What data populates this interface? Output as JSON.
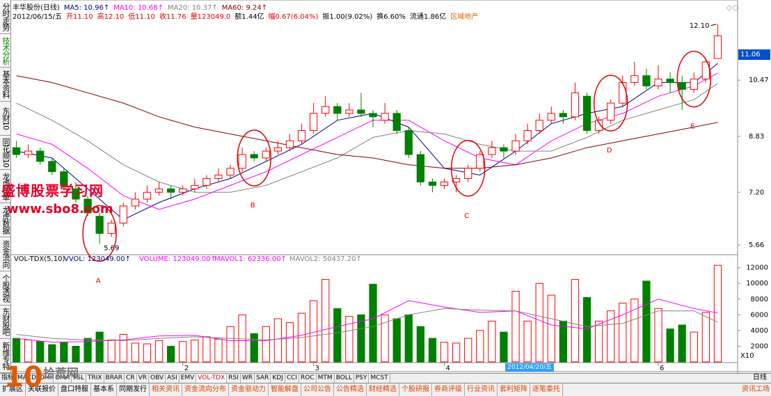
{
  "header": {
    "stock": "丰华股份(日线)",
    "date": "2012/06/15/五",
    "quote": [
      "开11.10",
      "高12.10",
      "低11.10",
      "收11.76",
      "量123049.0"
    ],
    "stats": [
      "额1.44亿",
      "幅0.67(6.04%)",
      "振1.00(9.02%)",
      "换6.60%",
      "流通1.86亿"
    ],
    "sector": "区域地产"
  },
  "sidebar": [
    "分时走势",
    "技术分析",
    "基本资料",
    "东财10",
    "同花顺10",
    "龙虎榜单",
    "龙虎数据",
    "资金流向",
    "个股透视",
    "东财股吧",
    "新维专特"
  ],
  "active_sidebar": "技术分析",
  "indicator_tabs": [
    "指标",
    "MACD",
    "DMI",
    "DMA",
    "FSL",
    "TRIX",
    "BRAR",
    "CR",
    "VR",
    "OBV",
    "ASI",
    "EMV",
    "VOL-TDX",
    "RSI",
    "WR",
    "SAR",
    "KDJ",
    "CCI",
    "ROC",
    "MTM",
    "BOLL",
    "PSY",
    "MCST"
  ],
  "active_indicator": "VOL-TDX",
  "period": "日线",
  "info_tabs": [
    "扩展区",
    "关联报价",
    "盘口特服",
    "基本系",
    "同期发行",
    "相关资讯",
    "资金流向分布",
    "资金驱动力",
    "智能解盘",
    "公司公告",
    "公告精选",
    "财经精选",
    "个股研报",
    "券商评级",
    "行业资讯",
    "套利矩阵",
    "逐笔委托"
  ],
  "info_corner": "资讯工场",
  "watermark": {
    "site_name": "盛博股票学习网",
    "site_url": "www.sbo8.com",
    "logo_number": "10",
    "logo_text": "拾荒网"
  },
  "annotations": [
    "A",
    "B",
    "C",
    "D",
    "E"
  ],
  "chart_data": [
    {
      "type": "candlestick",
      "colors": {
        "up": "#ff0000",
        "down": "#008000"
      },
      "xlim": [
        -0.5,
        59.5
      ],
      "ylim": [
        5.46,
        12.4
      ],
      "yticks": [
        10.47,
        8.83,
        {
          "value": 7.2,
          "label": "7.20"
        },
        5.66
      ],
      "high_label": "12.10",
      "low_label": "5.69",
      "cursor_price": "11.06",
      "ohlc": [
        [
          8.5,
          8.7,
          8.2,
          8.3
        ],
        [
          8.3,
          8.6,
          8.2,
          8.4
        ],
        [
          8.4,
          8.5,
          8.0,
          8.1
        ],
        [
          8.1,
          8.2,
          7.7,
          7.8
        ],
        [
          7.8,
          7.9,
          7.3,
          7.4
        ],
        [
          7.3,
          7.5,
          6.9,
          7.0
        ],
        [
          7.0,
          7.1,
          6.5,
          6.6
        ],
        [
          6.5,
          6.6,
          5.69,
          6.0
        ],
        [
          6.0,
          6.4,
          5.9,
          6.3
        ],
        [
          6.3,
          6.9,
          6.2,
          6.8
        ],
        [
          6.8,
          7.2,
          6.7,
          7.0
        ],
        [
          7.0,
          7.4,
          6.9,
          7.2
        ],
        [
          7.2,
          7.5,
          7.1,
          7.3
        ],
        [
          7.3,
          7.4,
          7.0,
          7.2
        ],
        [
          7.2,
          7.4,
          7.1,
          7.3
        ],
        [
          7.3,
          7.6,
          7.2,
          7.4
        ],
        [
          7.4,
          7.7,
          7.3,
          7.6
        ],
        [
          7.6,
          7.9,
          7.5,
          7.7
        ],
        [
          7.7,
          8.0,
          7.6,
          7.9
        ],
        [
          7.9,
          8.5,
          7.8,
          8.3
        ],
        [
          8.3,
          8.4,
          8.1,
          8.2
        ],
        [
          8.2,
          8.5,
          8.1,
          8.4
        ],
        [
          8.4,
          8.7,
          8.3,
          8.5
        ],
        [
          8.5,
          8.9,
          8.4,
          8.7
        ],
        [
          8.7,
          9.2,
          8.6,
          9.0
        ],
        [
          9.0,
          9.8,
          8.9,
          9.5
        ],
        [
          9.5,
          10.0,
          9.4,
          9.7
        ],
        [
          9.7,
          9.8,
          9.3,
          9.5
        ],
        [
          9.5,
          9.8,
          9.4,
          9.6
        ],
        [
          9.6,
          10.1,
          9.4,
          9.5
        ],
        [
          9.5,
          9.6,
          9.1,
          9.4
        ],
        [
          9.3,
          9.8,
          9.2,
          9.5
        ],
        [
          9.5,
          9.6,
          8.9,
          9.0
        ],
        [
          9.0,
          9.1,
          8.2,
          8.3
        ],
        [
          8.3,
          8.4,
          7.4,
          7.5
        ],
        [
          7.5,
          7.6,
          7.2,
          7.4
        ],
        [
          7.4,
          7.6,
          7.3,
          7.5
        ],
        [
          7.5,
          7.7,
          7.2,
          7.6
        ],
        [
          7.6,
          8.0,
          7.5,
          7.9
        ],
        [
          7.9,
          8.4,
          7.8,
          8.3
        ],
        [
          8.3,
          8.7,
          8.2,
          8.5
        ],
        [
          8.5,
          8.6,
          8.2,
          8.4
        ],
        [
          8.4,
          8.9,
          8.3,
          8.7
        ],
        [
          8.7,
          9.2,
          8.6,
          9.0
        ],
        [
          9.0,
          9.5,
          8.9,
          9.3
        ],
        [
          9.3,
          9.7,
          9.2,
          9.5
        ],
        [
          9.5,
          9.6,
          9.2,
          9.4
        ],
        [
          9.4,
          10.4,
          9.3,
          10.1
        ],
        [
          10.0,
          10.1,
          8.9,
          9.0
        ],
        [
          9.0,
          9.4,
          8.9,
          9.3
        ],
        [
          9.3,
          9.9,
          9.2,
          9.8
        ],
        [
          9.8,
          10.6,
          9.7,
          10.4
        ],
        [
          10.4,
          11.0,
          10.3,
          10.6
        ],
        [
          10.6,
          10.8,
          10.2,
          10.3
        ],
        [
          10.3,
          10.9,
          10.2,
          10.5
        ],
        [
          10.5,
          10.7,
          10.1,
          10.4
        ],
        [
          10.4,
          10.6,
          9.6,
          10.2
        ],
        [
          10.2,
          10.7,
          10.1,
          10.5
        ],
        [
          10.5,
          11.1,
          10.4,
          11.0
        ],
        [
          11.1,
          12.1,
          11.1,
          11.76
        ]
      ],
      "series": [
        {
          "name": "MA5: 10.96↑",
          "color": "#000080",
          "x": [
            0,
            3,
            6,
            9,
            12,
            15,
            18,
            21,
            24,
            27,
            30,
            33,
            36,
            39,
            42,
            45,
            48,
            51,
            54,
            57,
            59
          ],
          "values": [
            8.4,
            8.2,
            7.3,
            6.4,
            6.9,
            7.3,
            7.6,
            8.1,
            8.6,
            9.3,
            9.5,
            9.1,
            7.9,
            7.7,
            8.4,
            9.2,
            9.5,
            9.7,
            10.4,
            10.4,
            10.96
          ]
        },
        {
          "name": "MA10: 10.68↑",
          "color": "#ff00ff",
          "x": [
            0,
            3,
            6,
            9,
            12,
            15,
            18,
            21,
            24,
            27,
            30,
            33,
            36,
            39,
            42,
            45,
            48,
            51,
            54,
            57,
            59
          ],
          "values": [
            8.9,
            8.6,
            7.9,
            7.1,
            6.7,
            7.0,
            7.4,
            7.8,
            8.3,
            8.8,
            9.3,
            9.3,
            8.7,
            8.2,
            8.0,
            8.7,
            9.2,
            9.5,
            10.0,
            10.3,
            10.68
          ]
        },
        {
          "name": "MA20: 10.37↑",
          "color": "#808080",
          "x": [
            0,
            3,
            6,
            9,
            12,
            15,
            18,
            21,
            24,
            27,
            30,
            33,
            36,
            39,
            42,
            45,
            48,
            51,
            54,
            57,
            59
          ],
          "values": [
            9.8,
            9.3,
            8.7,
            8.0,
            7.5,
            7.2,
            7.2,
            7.4,
            7.8,
            8.2,
            8.8,
            9.0,
            8.9,
            8.6,
            8.4,
            8.4,
            8.8,
            9.3,
            9.6,
            9.9,
            10.37
          ]
        },
        {
          "name": "MA60: 9.24↑",
          "color": "#800000",
          "x": [
            0,
            3,
            6,
            9,
            12,
            15,
            18,
            21,
            24,
            27,
            30,
            33,
            36,
            39,
            42,
            45,
            48,
            51,
            54,
            57,
            59
          ],
          "values": [
            10.6,
            10.4,
            10.1,
            9.8,
            9.4,
            9.1,
            8.9,
            8.7,
            8.5,
            8.3,
            8.2,
            8.0,
            7.9,
            7.9,
            8.0,
            8.2,
            8.5,
            8.7,
            8.9,
            9.1,
            9.24
          ]
        }
      ]
    },
    {
      "type": "bar",
      "title": "VOL-TDX(5,10)",
      "readouts": [
        "VVOL: 123049.00↑",
        "VOLUME: 123049.00↑"
      ],
      "xlim": [
        -0.5,
        59.5
      ],
      "ylim": [
        0,
        13300
      ],
      "yticks": [
        2000,
        4000,
        6000,
        8000,
        10000,
        12000
      ],
      "xticks": [
        {
          "value": 14,
          "label": "2"
        },
        {
          "value": 25,
          "label": "3"
        },
        {
          "value": 36,
          "label": "4"
        },
        {
          "value": 54,
          "label": "6"
        }
      ],
      "cursor_date": "2012/04/20/五",
      "scale_note": "X10",
      "values": [
        3000,
        2800,
        2600,
        2200,
        2500,
        2000,
        3000,
        3800,
        2800,
        3500,
        2400,
        2300,
        2700,
        2000,
        2600,
        2800,
        3200,
        2900,
        4500,
        6000,
        3600,
        4500,
        5500,
        5000,
        6200,
        7800,
        10500,
        6800,
        5800,
        6000,
        9900,
        6000,
        5500,
        6000,
        4500,
        3000,
        2500,
        2400,
        3000,
        4000,
        5200,
        3800,
        9000,
        5200,
        10000,
        8500,
        5200,
        10500,
        8200,
        5200,
        6500,
        7500,
        8000,
        10300,
        6800,
        4200,
        4700,
        3800,
        6300,
        12305
      ],
      "series": [
        {
          "name": "MAVOL1: 62336.00↑",
          "color": "#ff00ff",
          "x": [
            0,
            3,
            6,
            9,
            12,
            15,
            18,
            21,
            24,
            27,
            30,
            33,
            36,
            39,
            42,
            45,
            48,
            51,
            54,
            57,
            59
          ],
          "values": [
            3000,
            2500,
            2600,
            2800,
            3300,
            3400,
            2700,
            2700,
            3400,
            4500,
            5500,
            7800,
            7000,
            6300,
            6500,
            4700,
            4200,
            6000,
            8000,
            6800,
            6234
          ]
        },
        {
          "name": "MAVOL2: 50437.20↑",
          "color": "#808080",
          "x": [
            0,
            3,
            6,
            9,
            12,
            15,
            18,
            21,
            24,
            27,
            30,
            33,
            36,
            39,
            42,
            45,
            48,
            51,
            54,
            57,
            59
          ],
          "values": [
            3500,
            3000,
            2800,
            2700,
            3000,
            3200,
            3000,
            2800,
            3100,
            3700,
            4500,
            6000,
            6800,
            6600,
            6500,
            5500,
            4500,
            4900,
            6500,
            6500,
            5044
          ]
        }
      ]
    }
  ]
}
